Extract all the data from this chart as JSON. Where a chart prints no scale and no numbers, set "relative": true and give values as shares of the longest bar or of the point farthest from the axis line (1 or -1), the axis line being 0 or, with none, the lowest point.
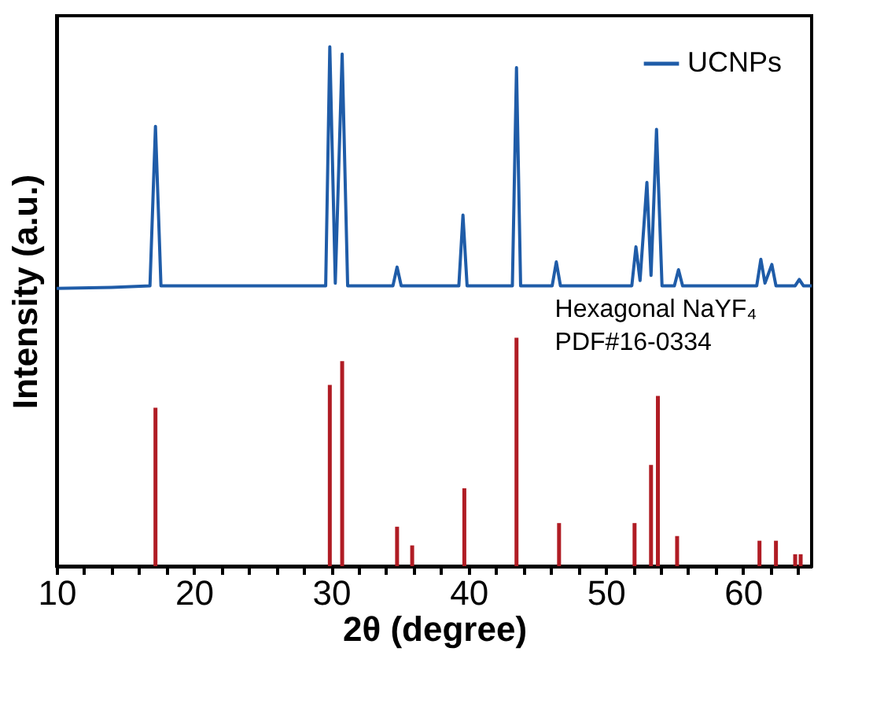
{
  "chart_data": {
    "type": "line",
    "relative": true,
    "xlabel": "2θ (degree)",
    "ylabel": "Intensity (a.u.)",
    "xlim": [
      10,
      65
    ],
    "xticks": [
      10,
      {
        "value": 12,
        "label": null
      },
      {
        "value": 14,
        "label": null
      },
      {
        "value": 16,
        "label": null
      },
      {
        "value": 18,
        "label": null
      },
      20,
      {
        "value": 22,
        "label": null
      },
      {
        "value": 24,
        "label": null
      },
      {
        "value": 26,
        "label": null
      },
      {
        "value": 28,
        "label": null
      },
      30,
      {
        "value": 32,
        "label": null
      },
      {
        "value": 34,
        "label": null
      },
      {
        "value": 36,
        "label": null
      },
      {
        "value": 38,
        "label": null
      },
      40,
      {
        "value": 42,
        "label": null
      },
      {
        "value": 44,
        "label": null
      },
      {
        "value": 46,
        "label": null
      },
      {
        "value": 48,
        "label": null
      },
      50,
      {
        "value": 52,
        "label": null
      },
      {
        "value": 54,
        "label": null
      },
      {
        "value": 56,
        "label": null
      },
      {
        "value": 58,
        "label": null
      },
      60,
      {
        "value": 62,
        "label": null
      },
      {
        "value": 64,
        "label": null
      }
    ],
    "tick_labels": "x",
    "grid": false,
    "legend": "top right",
    "annotations": [
      "Hexagonal NaYF₄",
      "PDF#16-0334"
    ],
    "series": [
      {
        "name": "UCNPs",
        "color": "#1f5ca8",
        "x": [
          10,
          14,
          16.8,
          17.2,
          17.6,
          22,
          29.6,
          29.9,
          30.3,
          30.8,
          31.2,
          34.5,
          34.8,
          35.1,
          39.3,
          39.6,
          39.9,
          43.2,
          43.5,
          43.8,
          46.1,
          46.4,
          46.7,
          51.9,
          52.2,
          52.5,
          53.0,
          53.3,
          53.7,
          54.1,
          55.0,
          55.3,
          55.6,
          61.0,
          61.3,
          61.6,
          62.1,
          62.4,
          63.8,
          64.1,
          64.4,
          65
        ],
        "values": [
          0.535,
          0.537,
          0.54,
          0.847,
          0.54,
          0.54,
          0.54,
          1.0,
          0.545,
          0.986,
          0.54,
          0.54,
          0.576,
          0.54,
          0.54,
          0.676,
          0.54,
          0.54,
          0.96,
          0.54,
          0.54,
          0.586,
          0.54,
          0.54,
          0.615,
          0.55,
          0.739,
          0.56,
          0.841,
          0.54,
          0.54,
          0.571,
          0.54,
          0.54,
          0.591,
          0.545,
          0.581,
          0.54,
          0.54,
          0.552,
          0.54,
          0.54
        ]
      },
      {
        "color": "#b01c24",
        "type": "bar",
        "x": [
          17.2,
          29.9,
          30.8,
          34.8,
          35.9,
          39.7,
          43.5,
          46.6,
          52.1,
          53.3,
          53.8,
          55.2,
          61.2,
          62.4,
          63.8,
          64.2
        ],
        "values": [
          0.305,
          0.349,
          0.395,
          0.076,
          0.04,
          0.15,
          0.44,
          0.083,
          0.083,
          0.195,
          0.328,
          0.058,
          0.049,
          0.049,
          0.023,
          0.023
        ]
      }
    ]
  }
}
